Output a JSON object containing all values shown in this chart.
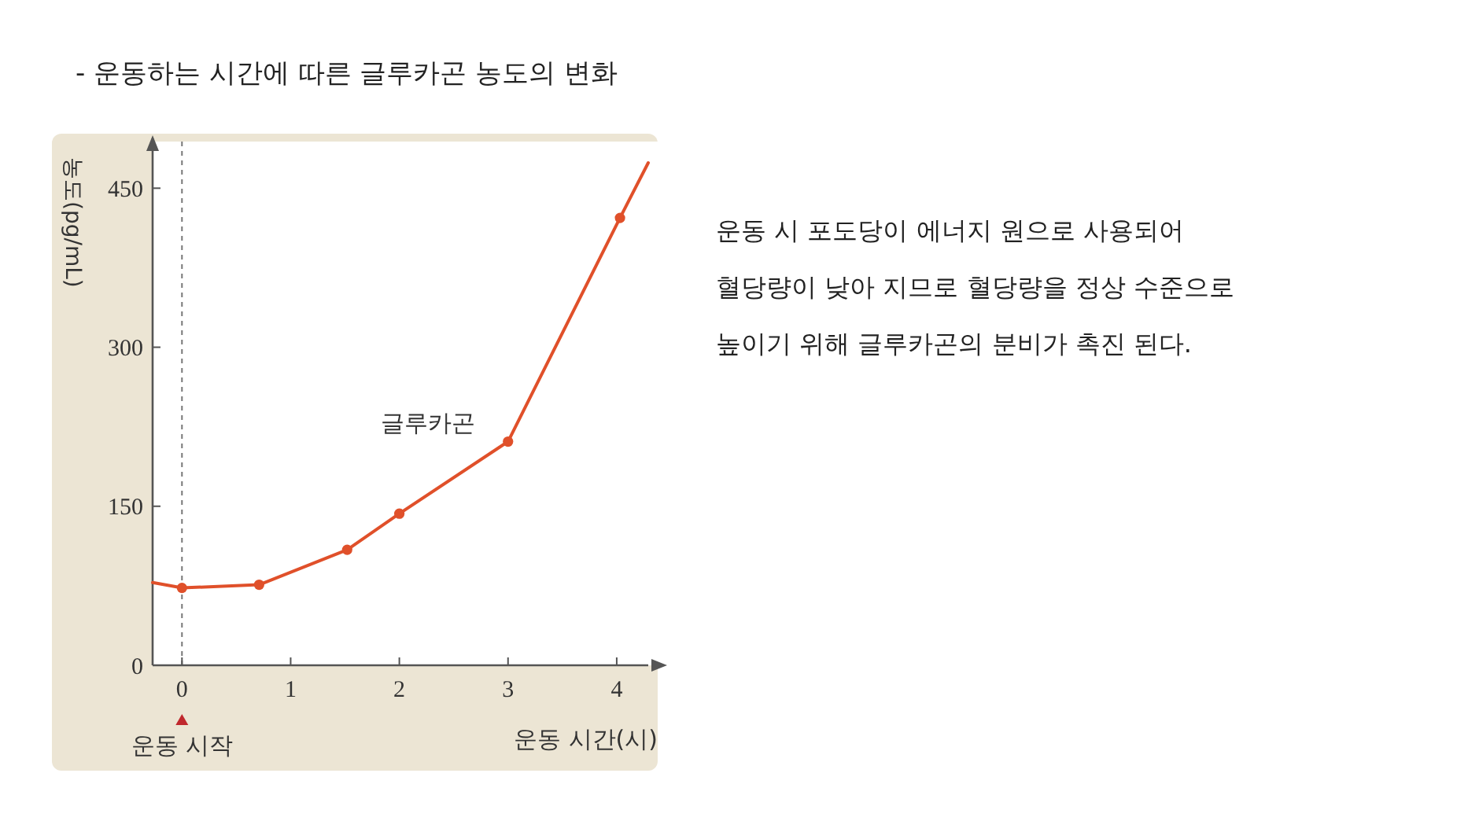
{
  "chart_data": {
    "type": "line",
    "title": "- 운동하는 시간에 따른 글루카곤 농도의 변화",
    "xlabel": "운동 시간(시)",
    "ylabel": "농도(pg/mL)",
    "series": [
      {
        "name": "글루카곤",
        "color": "#e0502a",
        "x": [
          -0.27,
          0,
          0.71,
          1.52,
          2,
          3,
          4.03,
          4.29
        ],
        "values": [
          78,
          73,
          76,
          109,
          143,
          211,
          422,
          474
        ],
        "marker": "none"
      },
      {
        "type": "scatter",
        "color": "#e0502a",
        "x": [
          0,
          0.71,
          1.52,
          2,
          3,
          4.03
        ],
        "values": [
          73,
          76,
          109,
          143,
          211,
          422
        ],
        "marker": "circle"
      }
    ],
    "xlim": [
      -0.27,
      4.29
    ],
    "ylim": [
      0,
      494
    ],
    "xticks": [
      0,
      1,
      2,
      3,
      4
    ],
    "yticks": [
      0,
      150,
      300,
      450
    ],
    "grid": false,
    "ref_lines": [
      {
        "axis": "x",
        "value": 0,
        "line_style": "dashed",
        "color": "#777777"
      }
    ],
    "annotations": [
      "운동 시작",
      "운동 시 포도당이 에너지 원으로 사용되어",
      "혈당량이 낮아 지므로 혈당량을 정상 수준으로",
      "높이기 위해 글루카곤의 분비가 촉진 된다."
    ]
  }
}
